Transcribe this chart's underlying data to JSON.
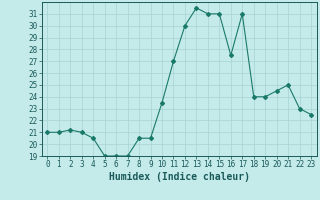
{
  "x": [
    0,
    1,
    2,
    3,
    4,
    5,
    6,
    7,
    8,
    9,
    10,
    11,
    12,
    13,
    14,
    15,
    16,
    17,
    18,
    19,
    20,
    21,
    22,
    23
  ],
  "y": [
    21,
    21,
    21.2,
    21,
    20.5,
    19,
    19,
    19,
    20.5,
    20.5,
    23.5,
    27,
    30,
    31.5,
    31,
    31,
    27.5,
    31,
    24,
    24,
    24.5,
    25,
    23,
    22.5
  ],
  "line_color": "#1a7a6a",
  "marker": "D",
  "marker_size": 2,
  "bg_color": "#c5eaea",
  "grid_color": "#a8d4d4",
  "xlabel": "Humidex (Indice chaleur)",
  "ylim": [
    19,
    32
  ],
  "xlim": [
    -0.5,
    23.5
  ],
  "yticks": [
    19,
    20,
    21,
    22,
    23,
    24,
    25,
    26,
    27,
    28,
    29,
    30,
    31
  ],
  "xticks": [
    0,
    1,
    2,
    3,
    4,
    5,
    6,
    7,
    8,
    9,
    10,
    11,
    12,
    13,
    14,
    15,
    16,
    17,
    18,
    19,
    20,
    21,
    22,
    23
  ],
  "tick_color": "#1a5a5a",
  "axis_color": "#1a5a5a",
  "xlabel_fontsize": 7,
  "tick_fontsize": 5.5
}
